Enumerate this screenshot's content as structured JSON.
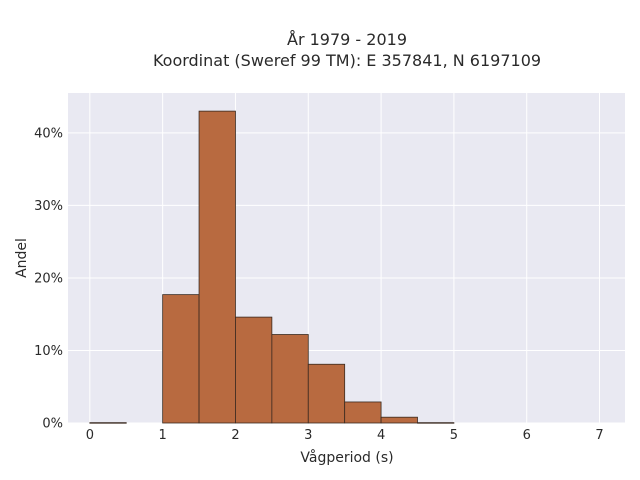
{
  "chart_data": {
    "type": "bar",
    "title_line1": "År 1979 - 2019",
    "title_line2": "Koordinat (Sweref 99 TM): E 357841, N 6197109",
    "xlabel": "Vågperiod (s)",
    "ylabel": "Andel",
    "xlim": [
      -0.3,
      7.35
    ],
    "ylim": [
      0,
      45.5
    ],
    "x_ticks": [
      0,
      1,
      2,
      3,
      4,
      5,
      6,
      7
    ],
    "x_tick_labels": [
      "0",
      "1",
      "2",
      "3",
      "4",
      "5",
      "6",
      "7"
    ],
    "y_ticks": [
      0,
      10,
      20,
      30,
      40
    ],
    "y_tick_labels": [
      "0%",
      "10%",
      "20%",
      "30%",
      "40%"
    ],
    "bin_edges": [
      0,
      0.5,
      1,
      1.5,
      2,
      2.5,
      3,
      3.5,
      4,
      4.5,
      5
    ],
    "values": [
      0.05,
      0,
      17.7,
      43.0,
      14.6,
      12.2,
      8.1,
      2.9,
      0.8,
      0.05
    ],
    "value_unit": "%",
    "bar_color": "#b86a40",
    "bar_edge_color": "#3a2a20",
    "plot_background": "#e9e9f2",
    "gridlines": true
  }
}
